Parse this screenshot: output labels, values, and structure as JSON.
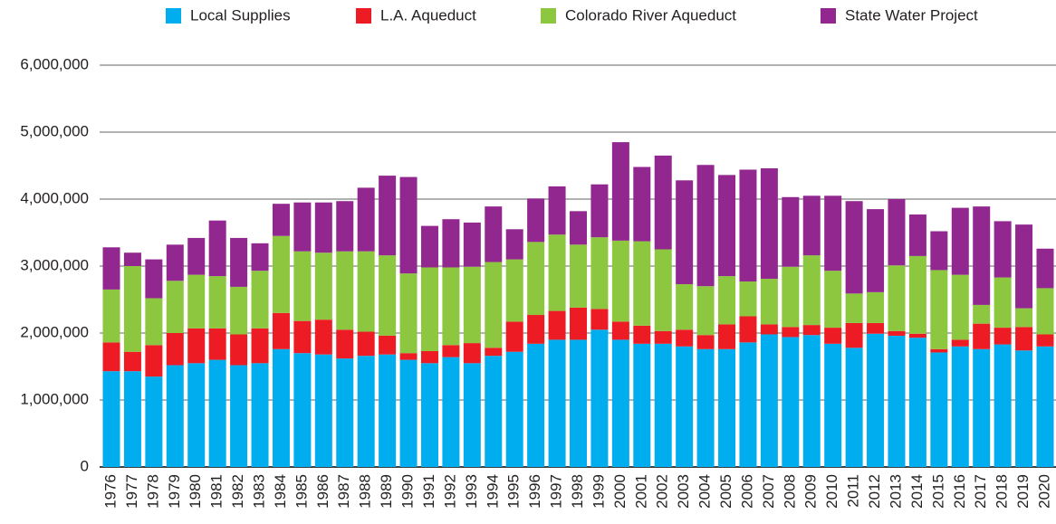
{
  "chart_data": {
    "type": "stacked_bar",
    "categories": [
      "1976",
      "1977",
      "1978",
      "1979",
      "1980",
      "1981",
      "1982",
      "1983",
      "1984",
      "1985",
      "1986",
      "1987",
      "1988",
      "1989",
      "1990",
      "1991",
      "1992",
      "1993",
      "1994",
      "1995",
      "1996",
      "1997",
      "1998",
      "1999",
      "2000",
      "2001",
      "2002",
      "2003",
      "2004",
      "2005",
      "2006",
      "2007",
      "2008",
      "2009",
      "2010",
      "2011",
      "2012",
      "2013",
      "2014",
      "2015",
      "2016",
      "2017",
      "2018",
      "2019",
      "2020"
    ],
    "series": [
      {
        "name": "Local Supplies",
        "color": "#00aeef",
        "values": [
          1430000,
          1430000,
          1350000,
          1520000,
          1550000,
          1600000,
          1520000,
          1550000,
          1760000,
          1700000,
          1680000,
          1620000,
          1660000,
          1680000,
          1600000,
          1550000,
          1640000,
          1550000,
          1660000,
          1720000,
          1840000,
          1900000,
          1900000,
          2050000,
          1900000,
          1840000,
          1840000,
          1800000,
          1760000,
          1760000,
          1860000,
          1980000,
          1940000,
          1970000,
          1840000,
          1780000,
          1990000,
          1960000,
          1930000,
          1710000,
          1800000,
          1760000,
          1830000,
          1740000,
          1800000
        ]
      },
      {
        "name": "L.A. Aqueduct",
        "color": "#ed1c24",
        "values": [
          430000,
          290000,
          470000,
          480000,
          520000,
          470000,
          460000,
          520000,
          540000,
          480000,
          520000,
          430000,
          360000,
          280000,
          100000,
          180000,
          180000,
          300000,
          120000,
          450000,
          430000,
          430000,
          480000,
          310000,
          270000,
          270000,
          190000,
          250000,
          210000,
          370000,
          390000,
          150000,
          150000,
          150000,
          240000,
          370000,
          160000,
          70000,
          60000,
          50000,
          100000,
          380000,
          250000,
          350000,
          180000
        ]
      },
      {
        "name": "Colorado River Aqueduct",
        "color": "#8dc63f",
        "values": [
          790000,
          1280000,
          700000,
          780000,
          800000,
          780000,
          710000,
          860000,
          1150000,
          1040000,
          1000000,
          1170000,
          1200000,
          1200000,
          1190000,
          1250000,
          1160000,
          1140000,
          1280000,
          930000,
          1090000,
          1140000,
          940000,
          1070000,
          1210000,
          1260000,
          1220000,
          680000,
          730000,
          720000,
          520000,
          680000,
          900000,
          1040000,
          850000,
          440000,
          460000,
          980000,
          1160000,
          1180000,
          970000,
          280000,
          750000,
          280000,
          690000
        ]
      },
      {
        "name": "State Water Project",
        "color": "#92278f",
        "values": [
          630000,
          200000,
          580000,
          540000,
          550000,
          830000,
          730000,
          410000,
          480000,
          730000,
          750000,
          750000,
          950000,
          1190000,
          1440000,
          620000,
          720000,
          660000,
          830000,
          450000,
          650000,
          720000,
          500000,
          790000,
          1470000,
          1110000,
          1400000,
          1550000,
          1810000,
          1510000,
          1670000,
          1650000,
          1040000,
          890000,
          1120000,
          1380000,
          1240000,
          990000,
          620000,
          580000,
          1000000,
          1470000,
          840000,
          1250000,
          590000
        ]
      }
    ],
    "ylim": [
      0,
      6000000
    ],
    "yticks": [
      0,
      {
        "value": 1000000,
        "label": "1,000,000"
      },
      {
        "value": 2000000,
        "label": "2,000,000"
      },
      {
        "value": 3000000,
        "label": "3,000,000"
      },
      {
        "value": 4000000,
        "label": "4,000,000"
      },
      {
        "value": 5000000,
        "label": "5,000,000"
      },
      {
        "value": 6000000,
        "label": "6,000,000"
      }
    ],
    "grid": true,
    "legend": "top"
  }
}
